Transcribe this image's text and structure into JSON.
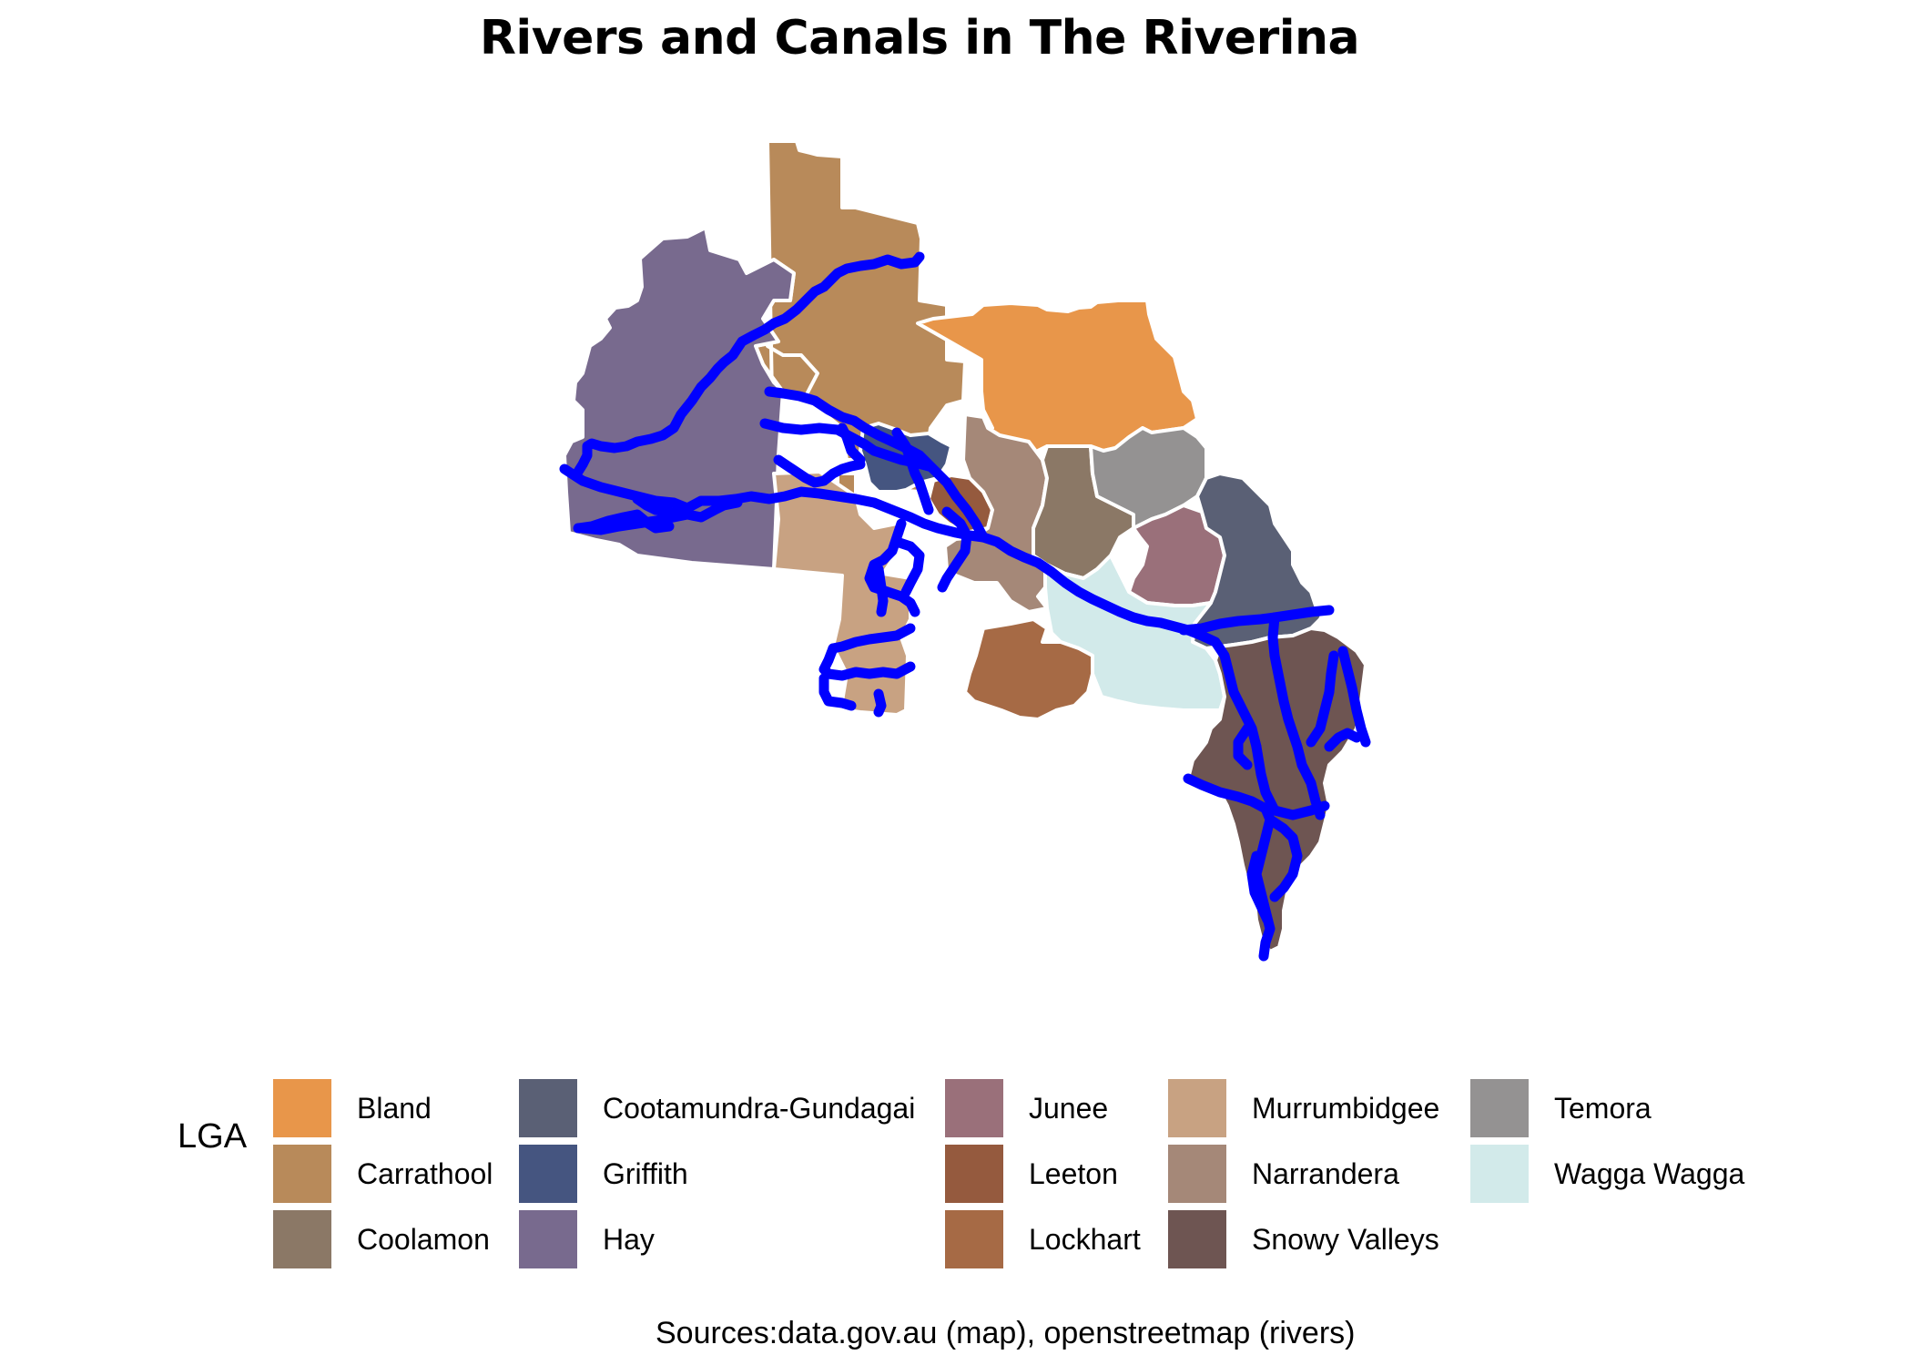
{
  "title": "Rivers and Canals in The Riverina",
  "caption": "Sources:data.gov.au (map), openstreetmap (rivers)",
  "river_color": "#0000ff",
  "border_color": "#ffffff",
  "legend": {
    "title": "LGA",
    "items": [
      {
        "label": "Bland",
        "color": "#e8964a"
      },
      {
        "label": "Carrathool",
        "color": "#b88a5a"
      },
      {
        "label": "Coolamon",
        "color": "#8b7866"
      },
      {
        "label": "Cootamundra-Gundagai",
        "color": "#5a6075"
      },
      {
        "label": "Griffith",
        "color": "#455580"
      },
      {
        "label": "Hay",
        "color": "#786a8e"
      },
      {
        "label": "Junee",
        "color": "#9a707a"
      },
      {
        "label": "Leeton",
        "color": "#955a3e"
      },
      {
        "label": "Lockhart",
        "color": "#a66a45"
      },
      {
        "label": "Murrumbidgee",
        "color": "#c8a282"
      },
      {
        "label": "Narrandera",
        "color": "#a58878"
      },
      {
        "label": "Snowy Valleys",
        "color": "#6e5552"
      },
      {
        "label": "Temora",
        "color": "#949292"
      },
      {
        "label": "Wagga Wagga",
        "color": "#d2eaea"
      }
    ]
  }
}
